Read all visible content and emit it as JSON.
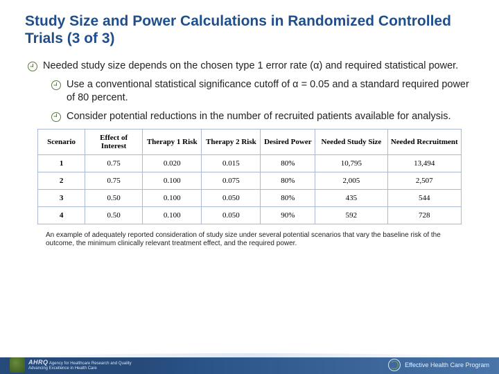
{
  "title": "Study Size and Power Calculations in Randomized Controlled Trials (3 of 3)",
  "bullets": {
    "l1_a": "Needed study size depends on the chosen type 1 error rate (α) and required statistical power.",
    "l2_a": "Use a conventional statistical significance cutoff of α = 0.05 and a standard required power of 80 percent.",
    "l2_b": "Consider potential reductions in the number of recruited patients available for analysis."
  },
  "table": {
    "columns": [
      "Scenario",
      "Effect of Interest",
      "Therapy 1 Risk",
      "Therapy 2 Risk",
      "Desired Power",
      "Needed Study Size",
      "Needed Recruitment"
    ],
    "col_widths": [
      "64px",
      "78px",
      "80px",
      "80px",
      "74px",
      "98px",
      "100px"
    ],
    "rows": [
      [
        "1",
        "0.75",
        "0.020",
        "0.015",
        "80%",
        "10,795",
        "13,494"
      ],
      [
        "2",
        "0.75",
        "0.100",
        "0.075",
        "80%",
        "2,005",
        "2,507"
      ],
      [
        "3",
        "0.50",
        "0.100",
        "0.050",
        "80%",
        "435",
        "544"
      ],
      [
        "4",
        "0.50",
        "0.100",
        "0.050",
        "90%",
        "592",
        "728"
      ]
    ],
    "border_color": "#a9b8d4",
    "header_fontsize": 11,
    "cell_fontsize": 11
  },
  "caption": "An example of adequately reported consideration of study size under several potential scenarios that vary the baseline risk of the outcome, the minimum clinically relevant treatment effect, and the required power.",
  "footer": {
    "left_line1": "Agency for Healthcare Research and Quality",
    "left_line2": "Advancing Excellence in Health Care",
    "left_brand": "AHRQ",
    "right": "Effective Health Care Program"
  },
  "colors": {
    "title": "#1f4e8c",
    "bullet_ring": "#5a7a3a",
    "footer_grad_from": "#264a7a",
    "footer_grad_to": "#4a75a8"
  }
}
